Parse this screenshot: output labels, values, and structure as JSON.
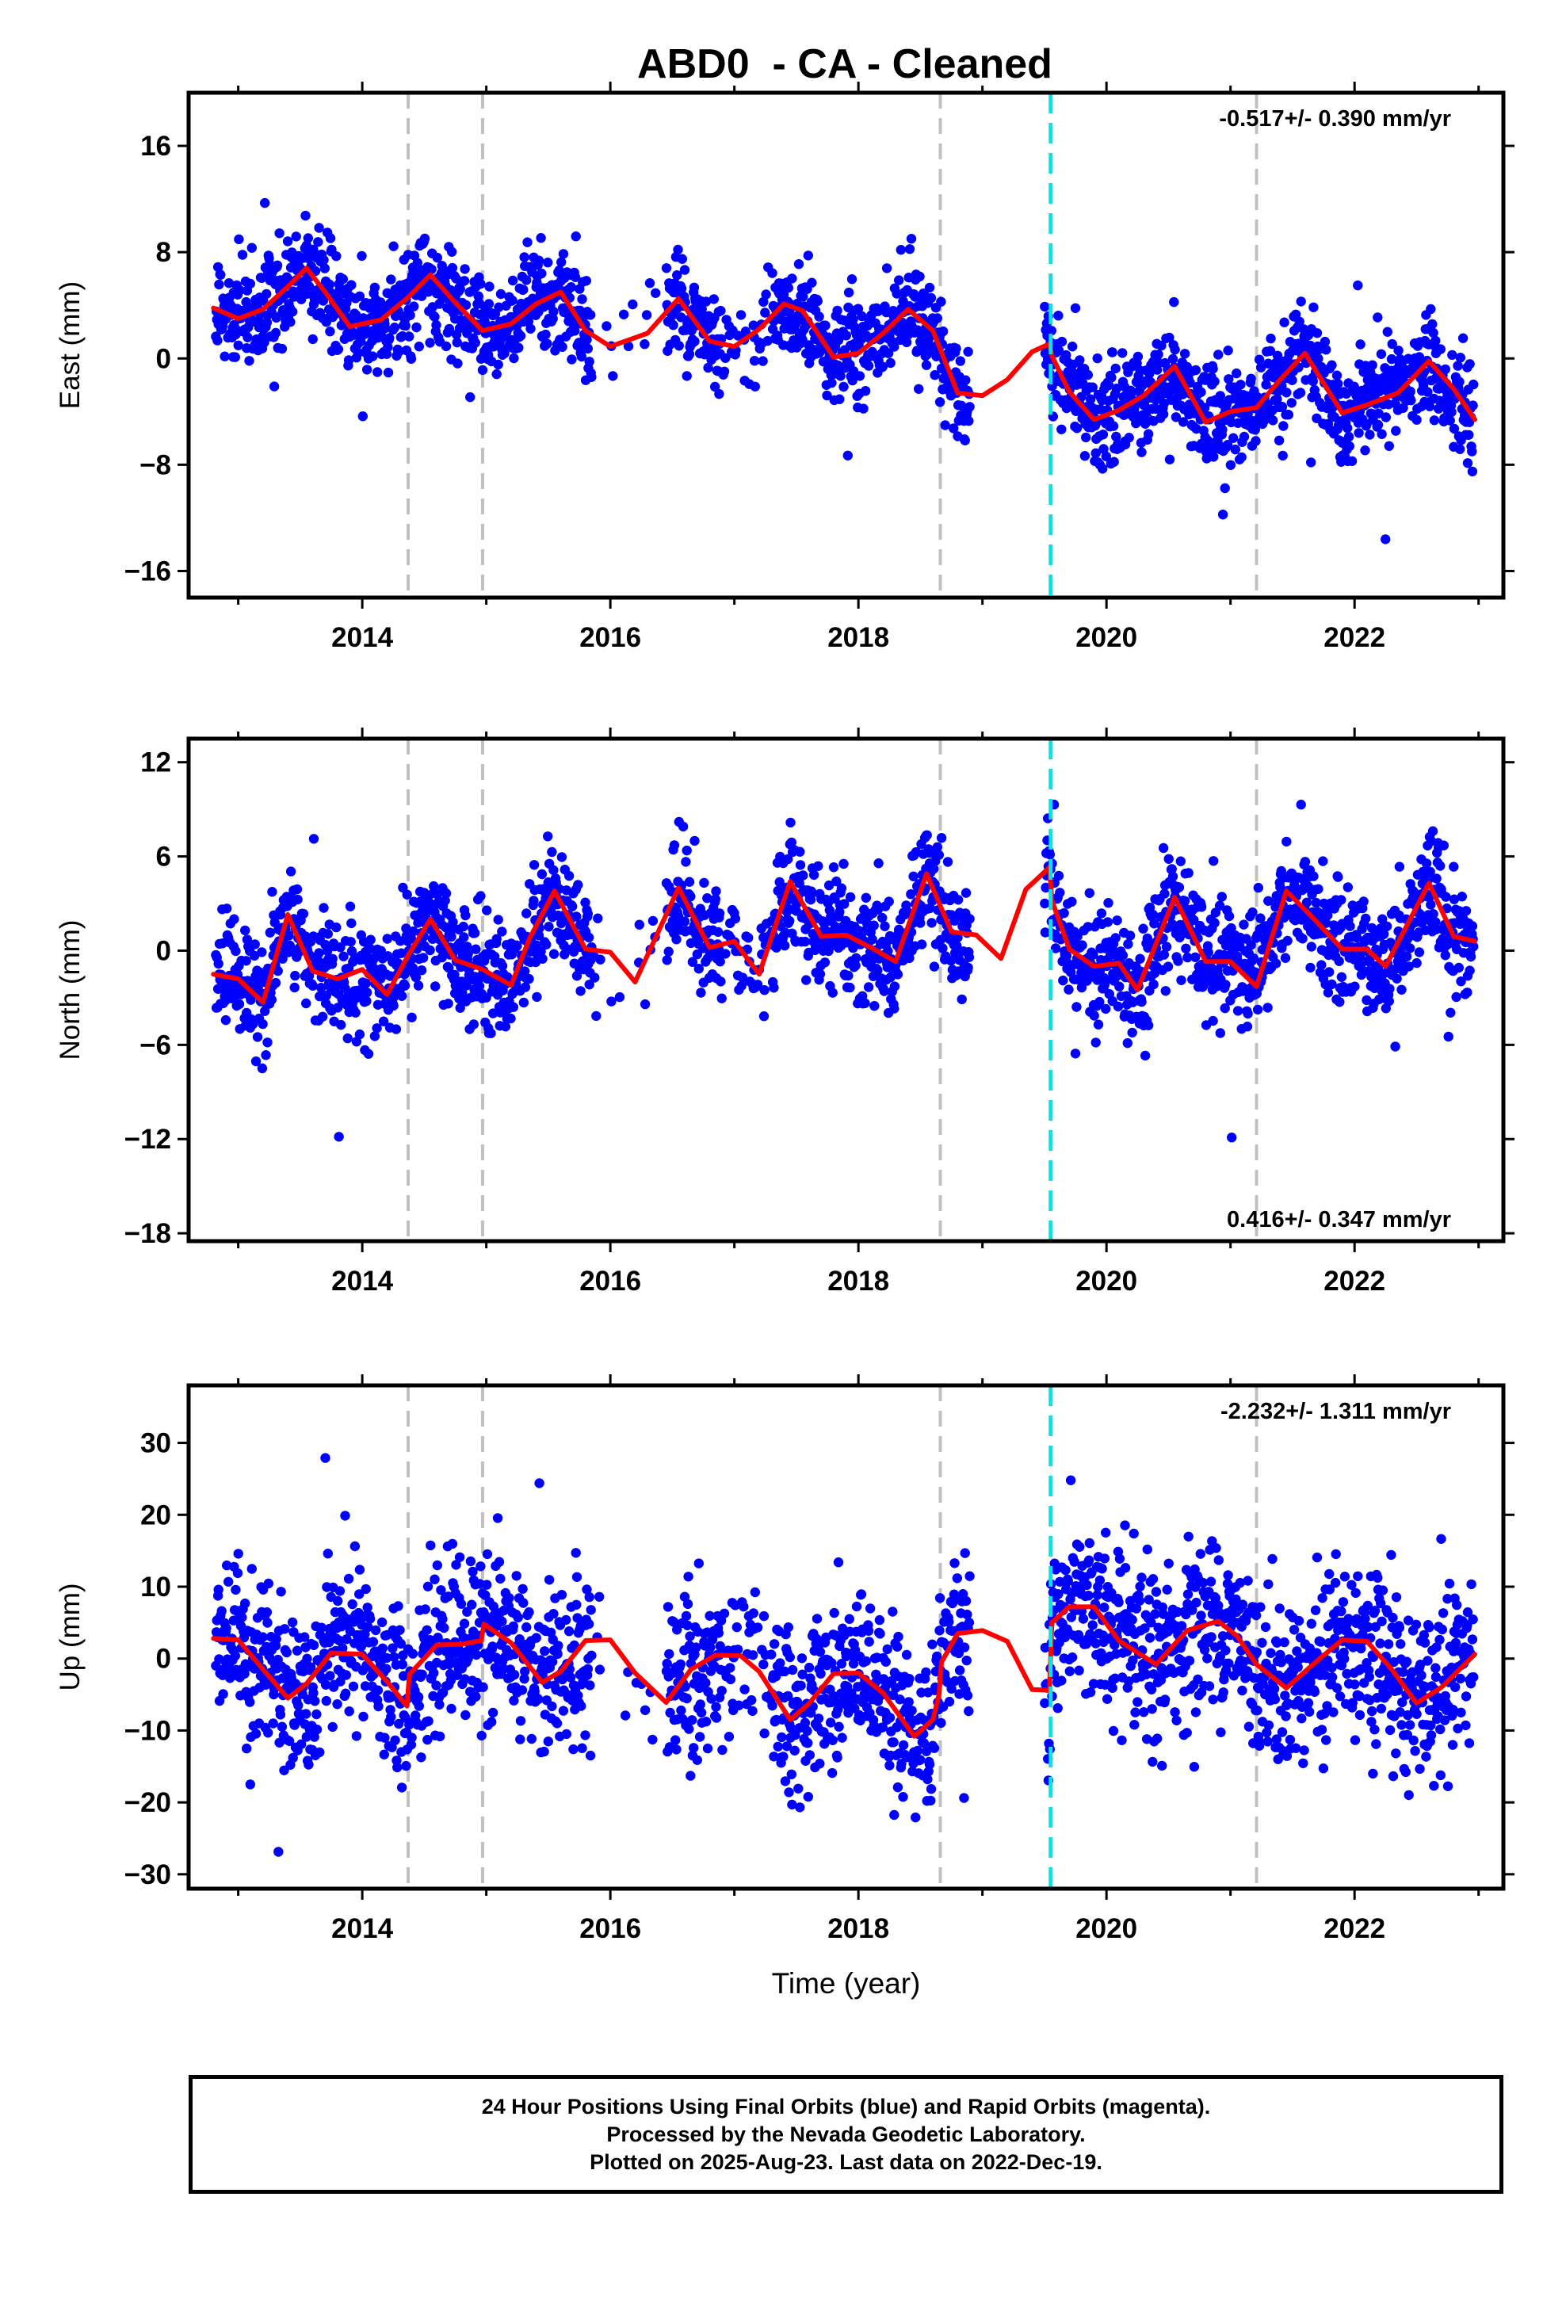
{
  "title": "ABD0  - CA - Cleaned",
  "colors": {
    "points": "#0000ff",
    "fit": "#ff0000",
    "offset": "#c0c0c0",
    "event": "#00e5e5"
  },
  "chart_data": [
    {
      "type": "scatter",
      "ylabel": "East (mm)",
      "xlabel": "",
      "rate_text": "-0.517+/- 0.390 mm/yr",
      "rate_position": "top-right",
      "xlim": [
        2012.6,
        2023.2
      ],
      "ylim": [
        -18,
        20
      ],
      "x_ticks": [
        2014,
        2016,
        2018,
        2020,
        2022
      ],
      "y_ticks": [
        -16,
        -8,
        0,
        8,
        16
      ],
      "offsets": [
        2014.37,
        2014.97,
        2018.66,
        2021.21
      ],
      "events": [
        2019.55
      ],
      "series": [
        {
          "kind": "fit_curve",
          "x": [
            2012.8,
            2013.0,
            2013.2,
            2013.4,
            2013.55,
            2013.7,
            2013.9,
            2014.15,
            2014.37,
            2014.55,
            2014.75,
            2014.97,
            2015.2,
            2015.4,
            2015.6,
            2015.8,
            2016.0,
            2016.3,
            2016.55,
            2016.8,
            2017.0,
            2017.2,
            2017.4,
            2017.55,
            2017.8,
            2018.0,
            2018.2,
            2018.4,
            2018.6,
            2018.8,
            2019.0,
            2019.2,
            2019.4,
            2019.54,
            2019.56,
            2019.7,
            2019.9,
            2020.1,
            2020.3,
            2020.55,
            2020.8,
            2021.0,
            2021.21,
            2021.4,
            2021.6,
            2021.9,
            2022.1,
            2022.35,
            2022.6,
            2022.8,
            2022.97
          ],
          "y": [
            3.8,
            3.0,
            3.7,
            5.4,
            6.8,
            5.0,
            2.4,
            2.9,
            4.6,
            6.3,
            4.2,
            2.1,
            2.6,
            4.1,
            5.0,
            2.1,
            0.9,
            1.9,
            4.5,
            1.3,
            0.9,
            2.2,
            4.1,
            3.6,
            0.1,
            0.4,
            1.9,
            3.7,
            2.1,
            -2.6,
            -2.8,
            -1.6,
            0.5,
            1.1,
            0.2,
            -2.5,
            -4.6,
            -3.9,
            -2.8,
            -0.6,
            -4.8,
            -4.0,
            -3.7,
            -1.6,
            0.4,
            -4.1,
            -3.5,
            -2.6,
            -0.2,
            -2.3,
            -4.6
          ]
        }
      ]
    },
    {
      "type": "scatter",
      "ylabel": "North (mm)",
      "xlabel": "",
      "rate_text": "0.416+/- 0.347 mm/yr",
      "rate_position": "bottom-right",
      "xlim": [
        2012.6,
        2023.2
      ],
      "ylim": [
        -18.5,
        13.5
      ],
      "x_ticks": [
        2014,
        2016,
        2018,
        2020,
        2022
      ],
      "y_ticks": [
        -18,
        -12,
        -6,
        0,
        6,
        12
      ],
      "offsets": [
        2014.37,
        2014.97,
        2018.66,
        2021.21
      ],
      "events": [
        2019.55
      ],
      "series": [
        {
          "kind": "fit_curve",
          "x": [
            2012.8,
            2013.0,
            2013.2,
            2013.4,
            2013.6,
            2013.8,
            2014.0,
            2014.2,
            2014.37,
            2014.55,
            2014.75,
            2014.97,
            2015.2,
            2015.35,
            2015.55,
            2015.8,
            2016.0,
            2016.2,
            2016.55,
            2016.8,
            2017.0,
            2017.2,
            2017.45,
            2017.7,
            2017.9,
            2018.1,
            2018.3,
            2018.55,
            2018.75,
            2018.95,
            2019.15,
            2019.35,
            2019.54,
            2019.56,
            2019.7,
            2019.9,
            2020.1,
            2020.25,
            2020.55,
            2020.8,
            2021.0,
            2021.21,
            2021.45,
            2021.7,
            2021.9,
            2022.1,
            2022.25,
            2022.6,
            2022.8,
            2022.97
          ],
          "y": [
            -1.5,
            -1.8,
            -3.3,
            2.3,
            -1.3,
            -1.8,
            -1.2,
            -2.8,
            -0.3,
            2.0,
            -0.6,
            -1.2,
            -2.2,
            0.8,
            3.8,
            0.1,
            -0.1,
            -2.0,
            4.0,
            0.2,
            0.6,
            -1.5,
            4.4,
            0.9,
            1.0,
            0.2,
            -0.7,
            4.9,
            1.2,
            1.0,
            -0.5,
            3.9,
            5.3,
            3.2,
            0.1,
            -1.0,
            -0.8,
            -2.5,
            3.4,
            -0.7,
            -0.7,
            -2.3,
            3.8,
            1.8,
            0.1,
            0.1,
            -1.0,
            4.3,
            0.9,
            0.6
          ]
        }
      ]
    },
    {
      "type": "scatter",
      "ylabel": "Up (mm)",
      "xlabel": "Time (year)",
      "rate_text": "-2.232+/- 1.311 mm/yr",
      "rate_position": "top-right",
      "xlim": [
        2012.6,
        2023.2
      ],
      "ylim": [
        -32,
        38
      ],
      "x_ticks": [
        2014,
        2016,
        2018,
        2020,
        2022
      ],
      "y_ticks": [
        -30,
        -20,
        -10,
        0,
        10,
        20,
        30
      ],
      "offsets": [
        2014.37,
        2014.97,
        2018.66,
        2021.21
      ],
      "events": [
        2019.55
      ],
      "series": [
        {
          "kind": "fit_curve",
          "x": [
            2012.8,
            2013.0,
            2013.2,
            2013.4,
            2013.55,
            2013.75,
            2014.0,
            2014.2,
            2014.36,
            2014.38,
            2014.6,
            2014.8,
            2014.96,
            2014.98,
            2015.2,
            2015.45,
            2015.6,
            2015.8,
            2016.0,
            2016.2,
            2016.45,
            2016.65,
            2016.85,
            2017.05,
            2017.2,
            2017.45,
            2017.6,
            2017.8,
            2018.0,
            2018.2,
            2018.45,
            2018.6,
            2018.65,
            2018.67,
            2018.8,
            2019.0,
            2019.2,
            2019.4,
            2019.54,
            2019.56,
            2019.7,
            2019.9,
            2020.1,
            2020.4,
            2020.65,
            2020.9,
            2021.05,
            2021.21,
            2021.45,
            2021.7,
            2021.9,
            2022.1,
            2022.3,
            2022.5,
            2022.7,
            2022.97
          ],
          "y": [
            2.8,
            2.6,
            -1.5,
            -5.5,
            -3.5,
            0.8,
            0.6,
            -3.2,
            -6.6,
            -2.2,
            1.9,
            2.0,
            2.5,
            4.8,
            2.2,
            -3.3,
            -1.8,
            2.5,
            2.6,
            -2.0,
            -6.1,
            -1.5,
            0.5,
            0.4,
            -1.8,
            -8.5,
            -6.3,
            -2.1,
            -2.0,
            -4.8,
            -10.8,
            -8.5,
            -5.0,
            -0.5,
            3.5,
            3.9,
            2.4,
            -4.3,
            -4.4,
            5.0,
            7.2,
            7.2,
            2.5,
            -0.8,
            3.9,
            5.2,
            3.2,
            -0.8,
            -4.1,
            -0.3,
            2.6,
            2.4,
            -1.5,
            -6.2,
            -4.0,
            0.6
          ]
        }
      ]
    }
  ],
  "footer": {
    "line1": "24 Hour Positions Using Final Orbits (blue) and Rapid Orbits (magenta).",
    "line2": "Processed by the Nevada Geodetic Laboratory.",
    "line3": "Plotted on 2025-Aug-23. Last data on 2022-Dec-19."
  }
}
